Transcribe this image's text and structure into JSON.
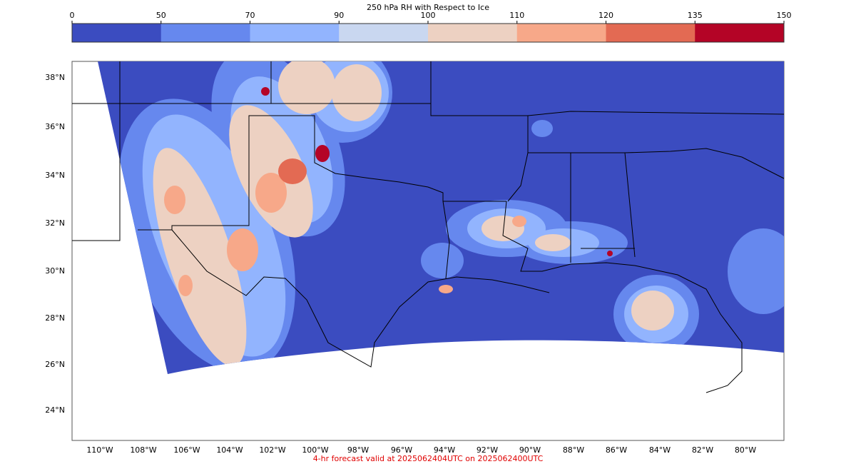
{
  "colorbar": {
    "title": "250 hPa RH with Respect to Ice",
    "levels": [
      0,
      50,
      70,
      90,
      100,
      110,
      120,
      135,
      150
    ],
    "colors": [
      "#3b4cc0",
      "#6688ee",
      "#92b4fe",
      "#c9d7f0",
      "#edd1c2",
      "#f7a889",
      "#e36a53",
      "#b40426"
    ]
  },
  "map": {
    "lat_labels": [
      "38°N",
      "36°N",
      "34°N",
      "32°N",
      "30°N",
      "28°N",
      "26°N",
      "24°N"
    ],
    "lon_labels": [
      "110°W",
      "108°W",
      "106°W",
      "104°W",
      "102°W",
      "100°W",
      "98°W",
      "96°W",
      "94°W",
      "92°W",
      "90°W",
      "88°W",
      "86°W",
      "84°W",
      "82°W",
      "80°W"
    ]
  },
  "footer": "4-hr forecast valid at 2025062404UTC on 2025062400UTC"
}
